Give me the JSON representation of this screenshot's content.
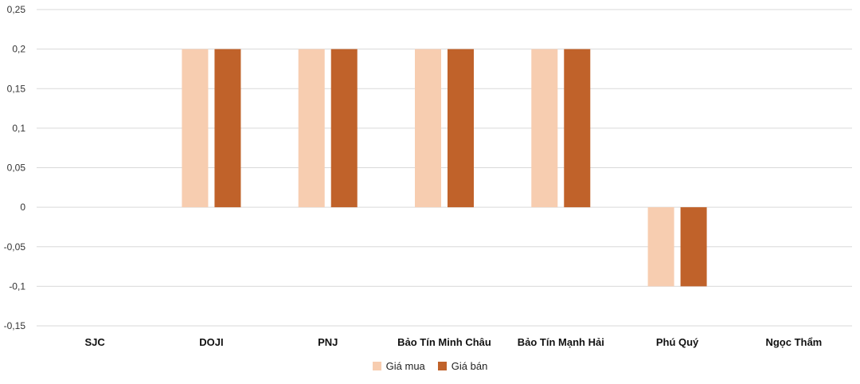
{
  "chart_data": {
    "type": "bar",
    "categories": [
      "SJC",
      "DOJI",
      "PNJ",
      "Bảo Tín Minh Châu",
      "Bảo Tín Mạnh Hải",
      "Phú Quý",
      "Ngọc Thẩm"
    ],
    "series": [
      {
        "name": "Giá mua",
        "color": "#f7cdb0",
        "values": [
          0,
          0.2,
          0.2,
          0.2,
          0.2,
          -0.1,
          0
        ]
      },
      {
        "name": "Giá bán",
        "color": "#c0622a",
        "values": [
          0,
          0.2,
          0.2,
          0.2,
          0.2,
          -0.1,
          0
        ]
      }
    ],
    "y_ticks": [
      "0,25",
      "0,2",
      "0,15",
      "0,1",
      "0,05",
      "0",
      "-0,05",
      "-0,1",
      "-0,15"
    ],
    "ylim": [
      -0.15,
      0.25
    ],
    "grid": true,
    "legend_position": "bottom",
    "title": "",
    "xlabel": "",
    "ylabel": ""
  }
}
